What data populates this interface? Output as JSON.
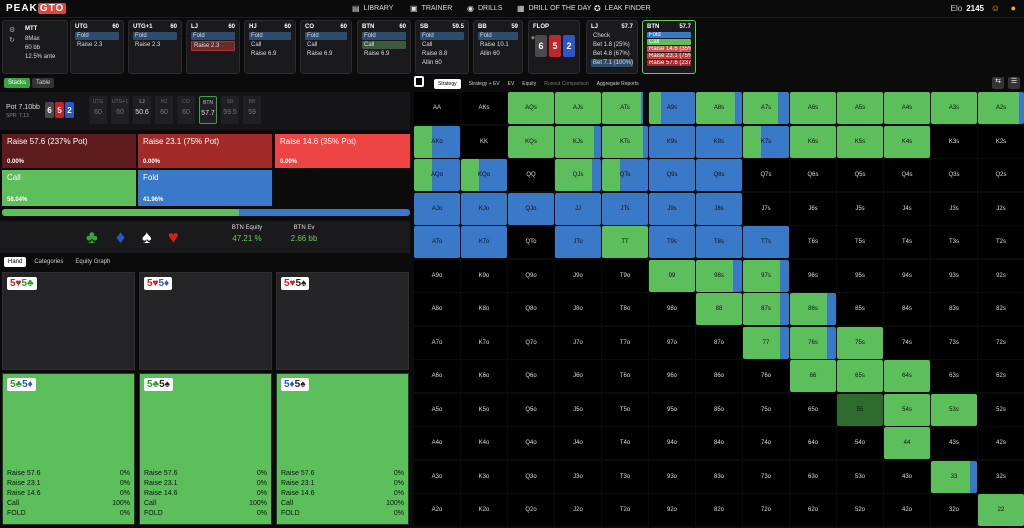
{
  "logo": {
    "part1": "PEAK",
    "part2": "GTO"
  },
  "nav": [
    {
      "icon": "library-icon",
      "glyph": "▤",
      "label": "LIBRARY"
    },
    {
      "icon": "trainer-icon",
      "glyph": "▣",
      "label": "TRAINER"
    },
    {
      "icon": "drills-icon",
      "glyph": "◉",
      "label": "DRILLS"
    },
    {
      "icon": "calendar-icon",
      "glyph": "▦",
      "label": "DRILL OF THE DAY"
    },
    {
      "icon": "bulb-icon",
      "glyph": "✪",
      "label": "LEAK FINDER"
    }
  ],
  "elo": {
    "label": "Elo",
    "value": "2145"
  },
  "game": {
    "type": "MTT",
    "players": "8Max",
    "stack": "60 bb",
    "ante": "12.5% ante"
  },
  "positions": [
    {
      "name": "UTG",
      "stack": "60",
      "rows": [
        "Fold",
        "Raise 2.3"
      ]
    },
    {
      "name": "UTG+1",
      "stack": "60",
      "rows": [
        "Fold",
        "Raise 2.3"
      ]
    },
    {
      "name": "LJ",
      "stack": "60",
      "rows": [
        "Fold",
        "Raise 2.3"
      ]
    },
    {
      "name": "HJ",
      "stack": "60",
      "rows": [
        "Fold",
        "Call",
        "Raise 6.9"
      ]
    },
    {
      "name": "CO",
      "stack": "60",
      "rows": [
        "Fold",
        "Call",
        "Raise 6.9"
      ]
    },
    {
      "name": "BTN",
      "stack": "60",
      "rows": [
        "Fold",
        "Call",
        "Raise 6.9"
      ]
    },
    {
      "name": "SB",
      "stack": "59.5",
      "rows": [
        "Fold",
        "Call",
        "Raise 8.8",
        "Allin 60"
      ]
    },
    {
      "name": "BB",
      "stack": "59",
      "rows": [
        "Fold",
        "Raise 10.1",
        "Allin 60"
      ]
    }
  ],
  "flop": {
    "label": "FLOP",
    "cards": [
      {
        "rank": "6",
        "color": "#4a4a4a"
      },
      {
        "rank": "5",
        "color": "#c02626"
      },
      {
        "rank": "2",
        "color": "#2d56c9"
      }
    ]
  },
  "lj2": {
    "name": "LJ",
    "stack": "57.7",
    "rows": [
      "Check",
      "Bet 1.8 (25%)",
      "Bet 4.8 (67%)",
      "Bet 7.1 (100%)"
    ]
  },
  "btn2": {
    "name": "BTN",
    "stack": "57.7",
    "rows": [
      "Fold",
      "Call",
      "Raise 14.6 (35%)",
      "Raise 23.1 (75%)",
      "Raise 57.6 (237%)"
    ]
  },
  "tabs": {
    "stacks": "Stacks",
    "table": "Table"
  },
  "pot": {
    "label": "Pot",
    "value": "7.10bb",
    "spr": "SPR: 7.13"
  },
  "board_mini": [
    "6",
    "5",
    "2"
  ],
  "seats": [
    {
      "n": "UTG",
      "v": "60"
    },
    {
      "n": "UTG+1",
      "v": "60"
    },
    {
      "n": "LJ",
      "v": "50.6"
    },
    {
      "n": "HJ",
      "v": "60"
    },
    {
      "n": "CO",
      "v": "60"
    },
    {
      "n": "BTN",
      "v": "57.7"
    },
    {
      "n": "SB",
      "v": "59.5"
    },
    {
      "n": "BB",
      "v": "59"
    }
  ],
  "actions": [
    {
      "label": "Raise 57.6 (237% Pot)",
      "pct": "0.00%"
    },
    {
      "label": "Raise 23.1 (75% Pot)",
      "pct": "0.00%"
    },
    {
      "label": "Raise 14.6 (35% Pot)",
      "pct": "0.00%"
    },
    {
      "label": "Call",
      "pct": "58.04%"
    },
    {
      "label": "Fold",
      "pct": "41.96%"
    }
  ],
  "freq_bar": {
    "call": 0.5804,
    "fold": 0.4196
  },
  "suit_glyphs": [
    "♣",
    "♦",
    "♠",
    "♥"
  ],
  "equity": {
    "label": "BTN Equity",
    "value": "47.21 %"
  },
  "ev": {
    "label": "BTN Ev",
    "value": "2.66 bb"
  },
  "hand_tabs": [
    "Hand",
    "Categories",
    "Equity Graph"
  ],
  "hands": [
    {
      "c1": "5♥",
      "c2": "5♣",
      "c1color": "#d02020",
      "c2color": "#2a9a2a",
      "green": false
    },
    {
      "c1": "5♥",
      "c2": "5♦",
      "c1color": "#d02020",
      "c2color": "#2d56c9",
      "green": false
    },
    {
      "c1": "5♥",
      "c2": "5♠",
      "c1color": "#d02020",
      "c2color": "#222",
      "green": false
    },
    {
      "c1": "5♣",
      "c2": "5♦",
      "c1color": "#2a9a2a",
      "c2color": "#2d56c9",
      "green": true
    },
    {
      "c1": "5♣",
      "c2": "5♠",
      "c1color": "#2a9a2a",
      "c2color": "#222",
      "green": true
    },
    {
      "c1": "5♦",
      "c2": "5♠",
      "c1color": "#2d56c9",
      "c2color": "#222",
      "green": true
    }
  ],
  "hand_stats": [
    {
      "k": "Raise 57.6",
      "v": "0%"
    },
    {
      "k": "Raise 23.1",
      "v": "0%"
    },
    {
      "k": "Raise 14.6",
      "v": "0%"
    },
    {
      "k": "Call",
      "v": "100%"
    },
    {
      "k": "FOLD",
      "v": "0%"
    }
  ],
  "matrix_tabs": [
    "Strategy",
    "Strategy + EV",
    "EV",
    "Equity",
    "Runout Comparison",
    "Aggregate Reports"
  ],
  "colors": {
    "call": "#5cbf5c",
    "fold": "#3a78c8",
    "selected": "#2e6b2e"
  },
  "ranks": [
    "A",
    "K",
    "Q",
    "J",
    "T",
    "9",
    "8",
    "7",
    "6",
    "5",
    "4",
    "3",
    "2"
  ],
  "grid_fill": [
    [
      null,
      null,
      [
        1,
        0.05
      ],
      [
        1,
        0
      ],
      [
        0.85,
        0.05
      ],
      [
        0.25,
        0.75
      ],
      [
        0.85,
        0.15
      ],
      [
        0.75,
        0.25
      ],
      [
        1,
        0
      ],
      [
        1,
        0
      ],
      [
        1,
        0
      ],
      [
        1,
        0
      ],
      [
        0.9,
        0.1
      ]
    ],
    [
      [
        0.4,
        0.6
      ],
      null,
      [
        1,
        0
      ],
      [
        0.85,
        0.15
      ],
      [
        0.9,
        0.1
      ],
      [
        0,
        1
      ],
      [
        0,
        1
      ],
      [
        0.4,
        0.6
      ],
      [
        1,
        0
      ],
      [
        1,
        0
      ],
      [
        1,
        0
      ],
      null,
      null
    ],
    [
      [
        0.4,
        0.6
      ],
      [
        0.4,
        0.6
      ],
      null,
      [
        0.8,
        0.2
      ],
      [
        0.4,
        0.6
      ],
      [
        0,
        1
      ],
      [
        0,
        1
      ],
      null,
      null,
      null,
      null,
      null,
      null
    ],
    [
      [
        0,
        1
      ],
      [
        0,
        1
      ],
      [
        0,
        1
      ],
      [
        0,
        1
      ],
      [
        0,
        1
      ],
      [
        0,
        1
      ],
      [
        0,
        1
      ],
      null,
      null,
      null,
      null,
      null,
      null
    ],
    [
      [
        0,
        1
      ],
      [
        0,
        1
      ],
      null,
      [
        0,
        1
      ],
      [
        1,
        0
      ],
      [
        0,
        1
      ],
      [
        0,
        1
      ],
      [
        0,
        1
      ],
      null,
      null,
      null,
      null,
      null
    ],
    [
      null,
      null,
      null,
      null,
      null,
      [
        1,
        0
      ],
      [
        0.8,
        0.2
      ],
      [
        0.8,
        0.2
      ],
      null,
      null,
      null,
      null,
      null
    ],
    [
      null,
      null,
      null,
      null,
      null,
      null,
      [
        1,
        0
      ],
      [
        0.8,
        0.2
      ],
      [
        0.8,
        0.2
      ],
      null,
      null,
      null,
      null
    ],
    [
      null,
      null,
      null,
      null,
      null,
      null,
      null,
      [
        0.8,
        0.2
      ],
      [
        0.8,
        0.2
      ],
      [
        1,
        0
      ],
      null,
      null,
      null
    ],
    [
      null,
      null,
      null,
      null,
      null,
      null,
      null,
      null,
      [
        1,
        0
      ],
      [
        1,
        0
      ],
      [
        1,
        0
      ],
      null,
      null
    ],
    [
      null,
      null,
      null,
      null,
      null,
      null,
      null,
      null,
      null,
      [
        1,
        0,
        1
      ],
      [
        1,
        0
      ],
      [
        1,
        0
      ],
      null
    ],
    [
      null,
      null,
      null,
      null,
      null,
      null,
      null,
      null,
      null,
      null,
      [
        1,
        0
      ],
      null,
      null
    ],
    [
      null,
      null,
      null,
      null,
      null,
      null,
      null,
      null,
      null,
      null,
      null,
      [
        0.85,
        0.15
      ],
      null
    ],
    [
      null,
      null,
      null,
      null,
      null,
      null,
      null,
      null,
      null,
      null,
      null,
      null,
      [
        1,
        0
      ]
    ]
  ]
}
